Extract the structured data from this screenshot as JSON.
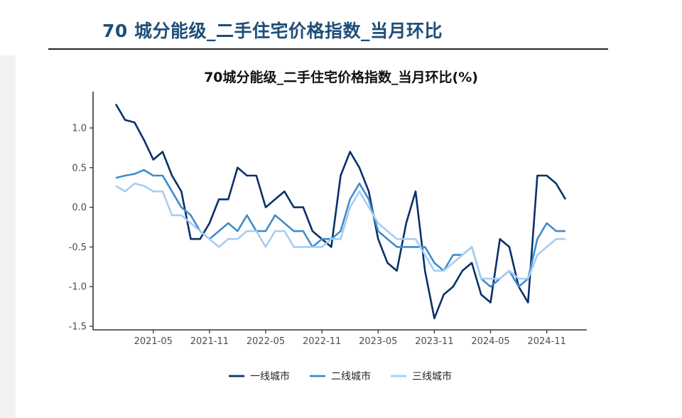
{
  "page": {
    "title": "70 城分能级_二手住宅价格指数_当月环比"
  },
  "chart_data": {
    "type": "line",
    "title": "70城分能级_二手住宅价格指数_当月环比(%)",
    "xlabel": "",
    "ylabel": "",
    "x_start": "2021-01",
    "x_end": "2025-01",
    "x_tick_labels": [
      "2021-05",
      "2021-11",
      "2022-05",
      "2022-11",
      "2023-05",
      "2023-11",
      "2024-05",
      "2024-11"
    ],
    "x_tick_positions": [
      "2021-05",
      "2021-11",
      "2022-05",
      "2022-11",
      "2023-05",
      "2023-11",
      "2024-05",
      "2024-11"
    ],
    "x": [
      "2021-01",
      "2021-02",
      "2021-03",
      "2021-04",
      "2021-05",
      "2021-06",
      "2021-07",
      "2021-08",
      "2021-09",
      "2021-10",
      "2021-11",
      "2021-12",
      "2022-01",
      "2022-02",
      "2022-03",
      "2022-04",
      "2022-05",
      "2022-06",
      "2022-07",
      "2022-08",
      "2022-09",
      "2022-10",
      "2022-11",
      "2022-12",
      "2023-01",
      "2023-02",
      "2023-03",
      "2023-04",
      "2023-05",
      "2023-06",
      "2023-07",
      "2023-08",
      "2023-09",
      "2023-10",
      "2023-11",
      "2023-12",
      "2024-01",
      "2024-02",
      "2024-03",
      "2024-04",
      "2024-05",
      "2024-06",
      "2024-07",
      "2024-08",
      "2024-09",
      "2024-10",
      "2024-11",
      "2024-12",
      "2025-01"
    ],
    "ylim": [
      -1.5,
      1.4
    ],
    "y_ticks": [
      -1.5,
      -1.0,
      -0.5,
      0.0,
      0.5,
      1.0
    ],
    "y_tick_labels": [
      "-1.5",
      "-1.0",
      "-0.5",
      "0.0",
      "0.5",
      "1.0"
    ],
    "grid": false,
    "legend_position": "bottom",
    "series": [
      {
        "name": "一线城市",
        "color": "#08306b",
        "values": [
          1.3,
          1.1,
          1.07,
          0.85,
          0.6,
          0.7,
          0.4,
          0.2,
          -0.4,
          -0.4,
          -0.2,
          0.1,
          0.1,
          0.5,
          0.4,
          0.4,
          0.0,
          0.1,
          0.2,
          0.0,
          0.0,
          -0.3,
          -0.4,
          -0.5,
          0.4,
          0.7,
          0.5,
          0.2,
          -0.4,
          -0.7,
          -0.8,
          -0.2,
          0.2,
          -0.8,
          -1.4,
          -1.1,
          -1.0,
          -0.8,
          -0.7,
          -1.1,
          -1.2,
          -0.4,
          -0.5,
          -1.0,
          -1.2,
          0.4,
          0.4,
          0.3,
          0.1
        ]
      },
      {
        "name": "二线城市",
        "color": "#3f8ccc",
        "values": [
          0.37,
          0.4,
          0.42,
          0.47,
          0.4,
          0.4,
          0.2,
          0.0,
          -0.1,
          -0.3,
          -0.4,
          -0.3,
          -0.2,
          -0.3,
          -0.1,
          -0.3,
          -0.3,
          -0.1,
          -0.2,
          -0.3,
          -0.3,
          -0.5,
          -0.4,
          -0.4,
          -0.3,
          0.1,
          0.3,
          0.1,
          -0.3,
          -0.4,
          -0.5,
          -0.5,
          -0.5,
          -0.5,
          -0.7,
          -0.8,
          -0.6,
          -0.6,
          -0.5,
          -0.9,
          -1.0,
          -0.9,
          -0.8,
          -1.0,
          -0.9,
          -0.4,
          -0.2,
          -0.3,
          -0.3
        ]
      },
      {
        "name": "三线城市",
        "color": "#a6cdf2",
        "values": [
          0.27,
          0.2,
          0.3,
          0.27,
          0.2,
          0.2,
          -0.1,
          -0.1,
          -0.2,
          -0.3,
          -0.4,
          -0.5,
          -0.4,
          -0.4,
          -0.3,
          -0.3,
          -0.5,
          -0.3,
          -0.3,
          -0.5,
          -0.5,
          -0.5,
          -0.5,
          -0.4,
          -0.4,
          0.0,
          0.2,
          0.0,
          -0.2,
          -0.3,
          -0.4,
          -0.4,
          -0.4,
          -0.6,
          -0.8,
          -0.8,
          -0.7,
          -0.6,
          -0.5,
          -0.9,
          -0.9,
          -0.9,
          -0.8,
          -0.9,
          -0.9,
          -0.6,
          -0.5,
          -0.4,
          -0.4
        ]
      }
    ]
  }
}
